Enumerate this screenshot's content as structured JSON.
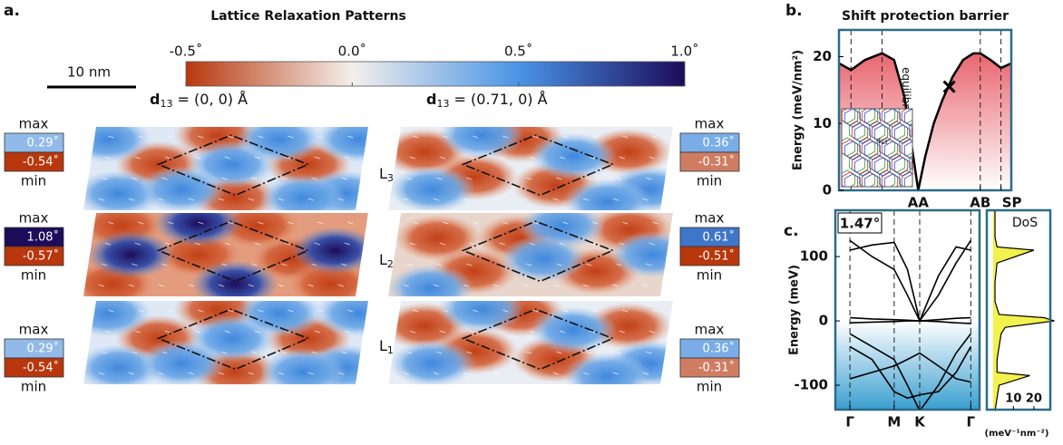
{
  "panel_a": {
    "label": "a.",
    "title": "Lattice Relaxation Patterns",
    "scale_bar": "10 nm",
    "colorbar": {
      "lim": [
        -0.5,
        1.0
      ],
      "colors": [
        "#b8370d",
        "#f4efec",
        "#4a94e6",
        "#1c0c5a"
      ],
      "ticks": [
        {
          "value": -0.5,
          "label": "-0.5˚"
        },
        {
          "value": 0.0,
          "label": "0.0˚"
        },
        {
          "value": 0.5,
          "label": "0.5˚"
        },
        {
          "value": 1.0,
          "label": "1.0˚"
        }
      ]
    },
    "d_symbol": "d",
    "d_subscript": "13",
    "max_label": "max",
    "min_label": "min",
    "layer_symbol": "L",
    "layer_subscripts": [
      "3",
      "2",
      "1"
    ],
    "stacks": [
      {
        "d13": " = (0, 0) Å",
        "layers": [
          {
            "max": {
              "value": 0.29,
              "label": "0.29˚"
            },
            "min": {
              "value": -0.54,
              "label": "-0.54˚"
            }
          },
          {
            "max": {
              "value": 1.08,
              "label": "1.08˚"
            },
            "min": {
              "value": -0.57,
              "label": "-0.57˚"
            }
          },
          {
            "max": {
              "value": 0.29,
              "label": "0.29˚"
            },
            "min": {
              "value": -0.54,
              "label": "-0.54˚"
            }
          }
        ]
      },
      {
        "d13": " = (0.71, 0) Å",
        "layers": [
          {
            "max": {
              "value": 0.36,
              "label": "0.36˚"
            },
            "min": {
              "value": -0.31,
              "label": "-0.31˚"
            }
          },
          {
            "max": {
              "value": 0.61,
              "label": "0.61˚"
            },
            "min": {
              "value": -0.51,
              "label": "-0.51˚"
            }
          },
          {
            "max": {
              "value": 0.36,
              "label": "0.36˚"
            },
            "min": {
              "value": -0.31,
              "label": "-0.31˚"
            }
          }
        ]
      }
    ]
  },
  "chart_data": [
    {
      "type": "line",
      "label": "b.",
      "title": "Shift protection barrier",
      "ylabel": "Energy (meV/nm²)",
      "x": [
        0,
        0.07,
        0.15,
        0.25,
        0.32,
        0.38,
        0.42,
        0.46,
        0.5,
        0.55,
        0.6,
        0.66,
        0.72,
        0.78,
        0.82,
        0.88,
        0.94,
        1.0
      ],
      "series": [
        {
          "color": "#000000",
          "values": [
            19,
            18,
            19.5,
            20.5,
            19.5,
            14,
            7,
            0,
            5,
            10,
            13.5,
            17,
            19.5,
            20.5,
            20.5,
            19.5,
            18.3,
            19
          ]
        }
      ],
      "fill_color": "#e8656f",
      "xlim": [
        0,
        1
      ],
      "ylim": [
        0,
        24
      ],
      "xticks": [
        {
          "value": 0.46,
          "label": "AA"
        },
        {
          "value": 0.82,
          "label": "AB"
        },
        {
          "value": 0.94,
          "label": "SP"
        }
      ],
      "yticks": [
        0,
        10,
        20
      ],
      "dashed_x": [
        0.07,
        0.25,
        0.82,
        0.94
      ],
      "marker": {
        "x": 0.64,
        "y": 15.5
      },
      "annotation": "equilibrium",
      "inset_label": {
        "symbol": "d",
        "subscript": "13"
      }
    },
    {
      "type": "line",
      "label": "c.",
      "ylabel": "Energy (meV)",
      "annotation": "1.47°",
      "x": [
        0,
        0.5,
        1,
        1.3,
        1.577,
        2,
        2.4,
        2.732
      ],
      "series": [
        {
          "color": "#000000",
          "values": [
            5,
            3,
            2,
            1,
            0,
            2,
            4,
            5
          ]
        },
        {
          "color": "#000000",
          "values": [
            -3,
            -2,
            -1,
            0,
            0,
            -1,
            -3,
            -4
          ]
        },
        {
          "color": "#000000",
          "values": [
            110,
            118,
            122,
            80,
            0,
            70,
            115,
            110
          ]
        },
        {
          "color": "#000000",
          "values": [
            125,
            100,
            80,
            40,
            0,
            40,
            90,
            125
          ]
        },
        {
          "color": "#000000",
          "values": [
            -20,
            -40,
            -60,
            -100,
            -140,
            -100,
            -50,
            -20
          ]
        },
        {
          "color": "#000000",
          "values": [
            -40,
            -60,
            -110,
            -120,
            -115,
            -110,
            -80,
            -40
          ]
        },
        {
          "color": "#000000",
          "values": [
            -90,
            -80,
            -70,
            -60,
            -50,
            -70,
            -90,
            -95
          ]
        }
      ],
      "fill_color": "#3a9fd0",
      "xlim": [
        -0.33,
        2.93
      ],
      "ylim": [
        -138,
        172
      ],
      "xticks": [
        {
          "value": 0,
          "label": "Γ"
        },
        {
          "value": 1,
          "label": "M"
        },
        {
          "value": 1.577,
          "label": "K"
        },
        {
          "value": 2.732,
          "label": "Γ"
        }
      ],
      "yticks": [
        -100,
        0,
        100
      ]
    },
    {
      "type": "dos",
      "title": "DoS",
      "xlabel": "(meV⁻¹nm⁻²)",
      "energy": [
        -140,
        -120,
        -100,
        -85,
        -80,
        -60,
        -40,
        -20,
        -10,
        0,
        5,
        10,
        30,
        60,
        90,
        110,
        115,
        130,
        172
      ],
      "dos": [
        1,
        2,
        3,
        18,
        2,
        2,
        3,
        4,
        6,
        30,
        25,
        3,
        1,
        1,
        2,
        20,
        2,
        1,
        1
      ],
      "color": "#f2f03a",
      "xlim": [
        -3,
        28
      ],
      "ylim": [
        -138,
        172
      ],
      "xticks": [
        10,
        20
      ]
    }
  ]
}
